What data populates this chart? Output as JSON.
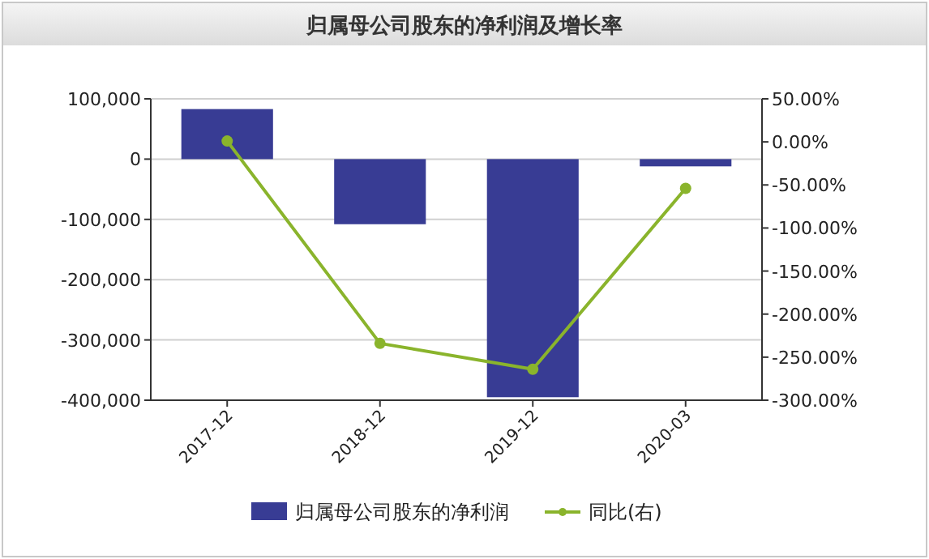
{
  "chart_data": {
    "type": "bar",
    "title": "归属母公司股东的净利润及增长率",
    "categories": [
      "2017-12",
      "2018-12",
      "2019-12",
      "2020-03"
    ],
    "series": [
      {
        "name": "归属母公司股东的净利润",
        "color": "#383c94",
        "values": [
          83000,
          -108000,
          -395000,
          -12000
        ]
      },
      {
        "name": "同比(右)",
        "type": "line",
        "axis": "y2",
        "color": "#8ab42c",
        "marker": "circle",
        "values": [
          1,
          -234,
          -264,
          -54
        ]
      }
    ],
    "ylim": [
      -400000,
      100000
    ],
    "yticks": [
      {
        "value": -400000,
        "label": "-400,000"
      },
      {
        "value": -300000,
        "label": "-300,000"
      },
      {
        "value": -200000,
        "label": "-200,000"
      },
      {
        "value": -100000,
        "label": "-100,000"
      },
      {
        "value": 0,
        "label": "0"
      },
      {
        "value": 100000,
        "label": "100,000"
      }
    ],
    "y2lim": [
      -300,
      50
    ],
    "y2ticks": [
      {
        "value": -300,
        "label": "-300.00%"
      },
      {
        "value": -250,
        "label": "-250.00%"
      },
      {
        "value": -200,
        "label": "-200.00%"
      },
      {
        "value": -150,
        "label": "-150.00%"
      },
      {
        "value": -100,
        "label": "-100.00%"
      },
      {
        "value": -50,
        "label": "-50.00%"
      },
      {
        "value": 0,
        "label": "0.00%"
      },
      {
        "value": 50,
        "label": "50.00%"
      }
    ],
    "grid": "y",
    "legend": "bottom"
  }
}
